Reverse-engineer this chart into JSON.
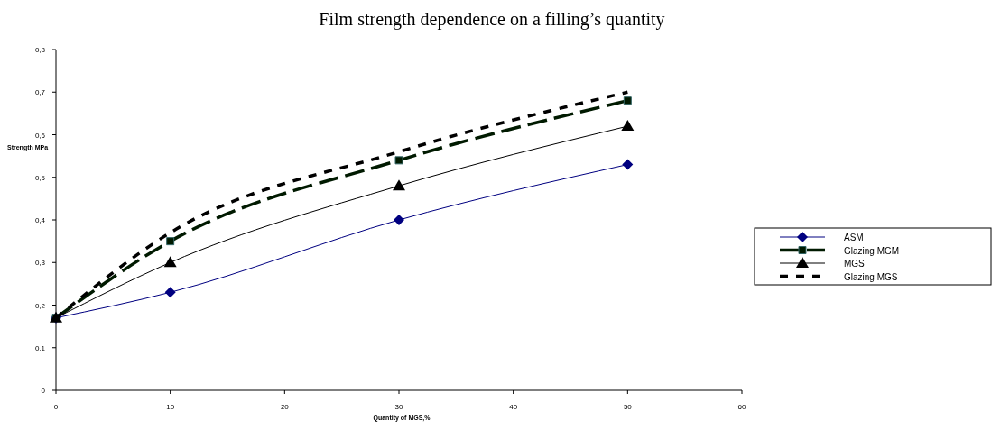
{
  "chart_data": {
    "type": "line",
    "title": "Film strength dependence on a filling’s quantity",
    "xlabel": "Quantity of MGS,%",
    "ylabel": "Strength  MPa",
    "x": [
      0,
      10,
      30,
      50
    ],
    "series": [
      {
        "name": "ASM",
        "color": "#000080",
        "values": [
          0.17,
          0.23,
          0.4,
          0.53
        ],
        "marker": "diamond",
        "line_style": "solid"
      },
      {
        "name": "Glazing MGM",
        "color": "#001a00",
        "values": [
          0.17,
          0.35,
          0.54,
          0.68
        ],
        "marker": "square",
        "line_style": "dashed"
      },
      {
        "name": "MGS",
        "color": "#000000",
        "values": [
          0.17,
          0.3,
          0.48,
          0.62
        ],
        "marker": "triangle",
        "line_style": "solid"
      },
      {
        "name": "Glazing MGS",
        "color": "#000000",
        "values": [
          0.17,
          0.37,
          0.56,
          0.7
        ],
        "marker": "none",
        "line_style": "dotted"
      }
    ],
    "xlim": [
      0,
      60
    ],
    "xticks": [
      0,
      10,
      20,
      30,
      40,
      50,
      60
    ],
    "ylim": [
      0,
      0.8
    ],
    "yticks": [
      {
        "value": 0,
        "label": "0"
      },
      {
        "value": 0.1,
        "label": "0,1"
      },
      {
        "value": 0.2,
        "label": "0,2"
      },
      {
        "value": 0.3,
        "label": "0,3"
      },
      {
        "value": 0.4,
        "label": "0,4"
      },
      {
        "value": 0.5,
        "label": "0,5"
      },
      {
        "value": 0.6,
        "label": "0,6"
      },
      {
        "value": 0.7,
        "label": "0,7"
      },
      {
        "value": 0.8,
        "label": "0,8"
      }
    ],
    "grid": false,
    "legend": "right"
  }
}
